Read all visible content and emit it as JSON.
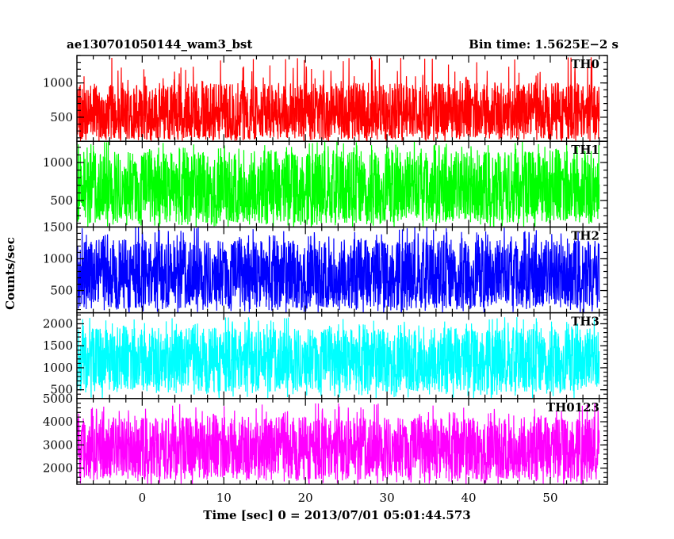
{
  "chart_data": {
    "type": "line",
    "title_left": "ae130701050144_wam3_bst",
    "title_right": "Bin time: 1.5625E−2 s",
    "xlabel": "Time [sec] 0 = 2013/07/01 05:01:44.573",
    "ylabel": "Counts/sec",
    "xlim": [
      -8,
      57
    ],
    "xticks": [
      0,
      10,
      20,
      30,
      40,
      50
    ],
    "data_x_range": [
      -8,
      56
    ],
    "series": [
      {
        "name": "TH0",
        "color": "#ff0000",
        "ylim": [
          150,
          1400
        ],
        "yticks": [
          500,
          1000
        ],
        "mean": 540,
        "low": 180,
        "high": 1000,
        "peak": 1380
      },
      {
        "name": "TH1",
        "color": "#00ff00",
        "ylim": [
          150,
          1280
        ],
        "yticks": [
          500,
          1000
        ],
        "mean": 620,
        "low": 200,
        "high": 1150,
        "peak": 1280
      },
      {
        "name": "TH2",
        "color": "#0000ff",
        "ylim": [
          150,
          1500
        ],
        "yticks": [
          500,
          1000,
          1500
        ],
        "mean": 700,
        "low": 220,
        "high": 1300,
        "peak": 1500
      },
      {
        "name": "TH3",
        "color": "#00ffff",
        "ylim": [
          300,
          2250
        ],
        "yticks": [
          500,
          1000,
          1500,
          2000
        ],
        "mean": 1150,
        "low": 450,
        "high": 1900,
        "peak": 2150
      },
      {
        "name": "TH0123",
        "color": "#ff00ff",
        "ylim": [
          1300,
          5000
        ],
        "yticks": [
          2000,
          3000,
          4000,
          5000
        ],
        "mean": 2800,
        "low": 1500,
        "high": 4200,
        "peak": 4800
      }
    ]
  }
}
